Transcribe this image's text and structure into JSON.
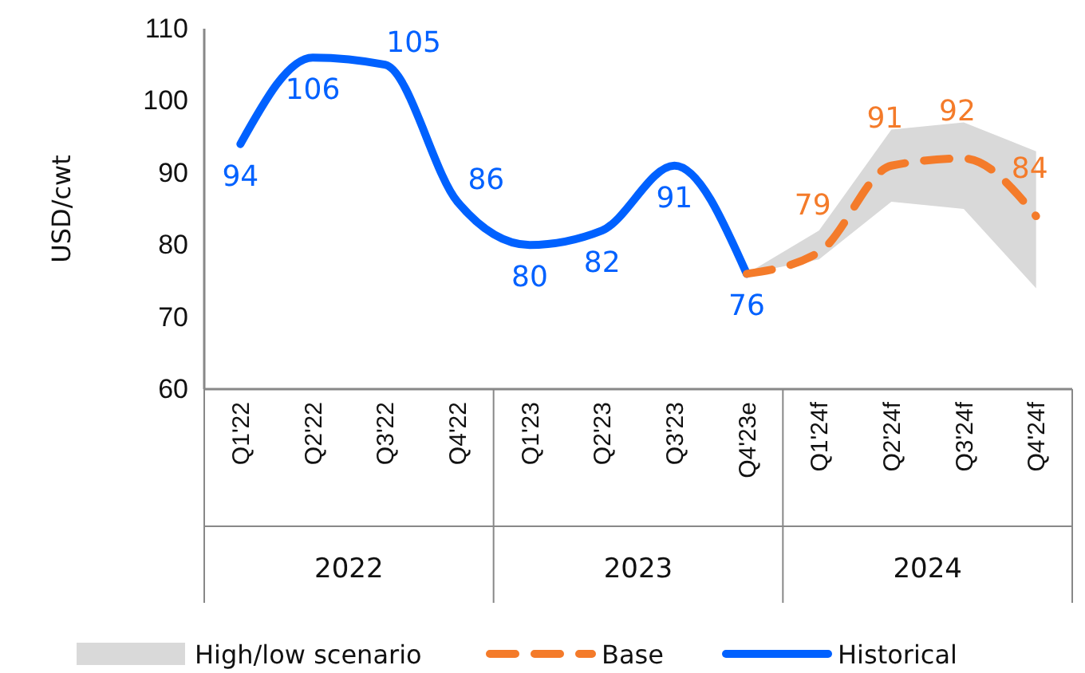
{
  "chart_data": {
    "type": "line",
    "ylabel": "USD/cwt",
    "categories": [
      "Q1'22",
      "Q2'22",
      "Q3'22",
      "Q4'22",
      "Q1'23",
      "Q2'23",
      "Q3'23",
      "Q4'23e",
      "Q1'24f",
      "Q2'24f",
      "Q3'24f",
      "Q4'24f"
    ],
    "series": [
      {
        "name": "Historical",
        "color": "#0061ff",
        "line_style": "solid",
        "values": [
          94,
          106,
          105,
          86,
          80,
          82,
          91,
          76,
          null,
          null,
          null,
          null
        ],
        "value_labels": [
          "94",
          "106",
          "105",
          "86",
          "80",
          "82",
          "91",
          "76",
          null,
          null,
          null,
          null
        ]
      },
      {
        "name": "Base",
        "color": "#f47b2a",
        "line_style": "dashed",
        "values": [
          null,
          null,
          null,
          null,
          null,
          null,
          null,
          76,
          79,
          91,
          92,
          84
        ],
        "value_labels": [
          null,
          null,
          null,
          null,
          null,
          null,
          null,
          null,
          "79",
          "91",
          "92",
          "84"
        ],
        "lower": [
          null,
          null,
          null,
          null,
          null,
          null,
          null,
          76,
          78,
          86,
          85,
          74
        ],
        "upper": [
          null,
          null,
          null,
          null,
          null,
          null,
          null,
          76,
          82,
          96,
          97,
          93
        ]
      }
    ],
    "annotations": [
      "2022",
      "2023",
      "2024",
      "High/low scenario"
    ],
    "ylim": [
      60,
      110
    ],
    "yticks": [
      60,
      70,
      80,
      90,
      100,
      110
    ],
    "grid": false,
    "legend": "bottom",
    "marker": "none"
  }
}
